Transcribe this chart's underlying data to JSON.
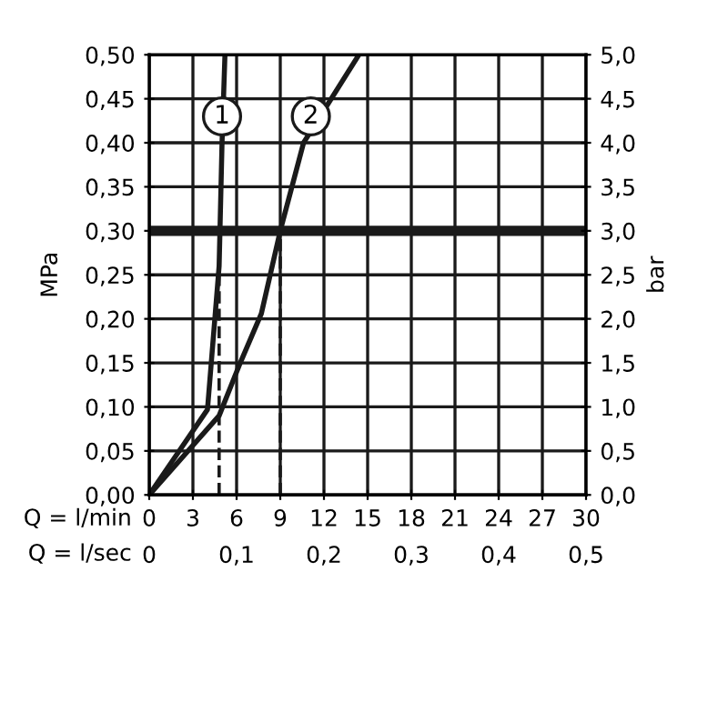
{
  "chart_data": {
    "type": "line",
    "xlabel": "Q = l/min",
    "x2label": "Q = l/sec",
    "ylabel": "MPa",
    "y2label": "bar",
    "xlim": [
      0,
      30
    ],
    "xticks": [
      0,
      3,
      6,
      9,
      12,
      15,
      18,
      21,
      24,
      27,
      30
    ],
    "x2lim": [
      0,
      0.5
    ],
    "x2ticks": [
      0,
      {
        "value": 0.1,
        "label": "0,1"
      },
      {
        "value": 0.2,
        "label": "0,2"
      },
      {
        "value": 0.3,
        "label": "0,3"
      },
      {
        "value": 0.4,
        "label": "0,4"
      },
      {
        "value": 0.5,
        "label": "0,5"
      }
    ],
    "ylim": [
      0,
      0.5
    ],
    "yticks": [
      {
        "value": 0,
        "label": "0,00"
      },
      {
        "value": 0.05,
        "label": "0,05"
      },
      {
        "value": 0.1,
        "label": "0,10"
      },
      {
        "value": 0.15,
        "label": "0,15"
      },
      {
        "value": 0.2,
        "label": "0,20"
      },
      {
        "value": 0.25,
        "label": "0,25"
      },
      {
        "value": 0.3,
        "label": "0,30"
      },
      {
        "value": 0.35,
        "label": "0,35"
      },
      {
        "value": 0.4,
        "label": "0,40"
      },
      {
        "value": 0.45,
        "label": "0,45"
      },
      {
        "value": 0.5,
        "label": "0,50"
      }
    ],
    "y2lim": [
      0,
      5
    ],
    "y2ticks": [
      {
        "value": 0,
        "label": "0,0"
      },
      {
        "value": 0.5,
        "label": "0,5"
      },
      {
        "value": 1,
        "label": "1,0"
      },
      {
        "value": 1.5,
        "label": "1,5"
      },
      {
        "value": 2,
        "label": "2,0"
      },
      {
        "value": 2.5,
        "label": "2,5"
      },
      {
        "value": 3,
        "label": "3,0"
      },
      {
        "value": 3.5,
        "label": "3,5"
      },
      {
        "value": 4,
        "label": "4,0"
      },
      {
        "value": 4.5,
        "label": "4,5"
      },
      {
        "value": 5,
        "label": "5,0"
      }
    ],
    "grid": true,
    "legend": false,
    "marker": "none",
    "series": [
      {
        "color": "#1a1a1a",
        "line_style": "solid",
        "x": [
          0,
          4.0,
          4.8,
          5.0,
          5.2
        ],
        "values": [
          0,
          0.097,
          0.26,
          0.4,
          0.5
        ]
      },
      {
        "color": "#1a1a1a",
        "line_style": "solid",
        "x": [
          0,
          4.8,
          6.25,
          7.7,
          9.0,
          10.6,
          14.4
        ],
        "values": [
          0,
          0.09,
          0.15,
          0.206,
          0.3,
          0.4,
          0.5
        ]
      },
      {
        "color": "#1a1a1a",
        "line_style": "dashed",
        "x": [
          4.8,
          4.8
        ],
        "values": [
          0,
          0.3
        ]
      },
      {
        "color": "#1a1a1a",
        "line_style": "dashed",
        "x": [
          9.0,
          9.0
        ],
        "values": [
          0,
          0.3
        ]
      }
    ],
    "ref_lines": [
      {
        "axis": "y",
        "value": 0.3,
        "color": "#1a1a1a",
        "line_style": "solid"
      }
    ],
    "annotations": [
      {
        "text": "1",
        "x": 5.0,
        "y": 0.43
      },
      {
        "text": "2",
        "x": 11.1,
        "y": 0.43
      }
    ]
  }
}
